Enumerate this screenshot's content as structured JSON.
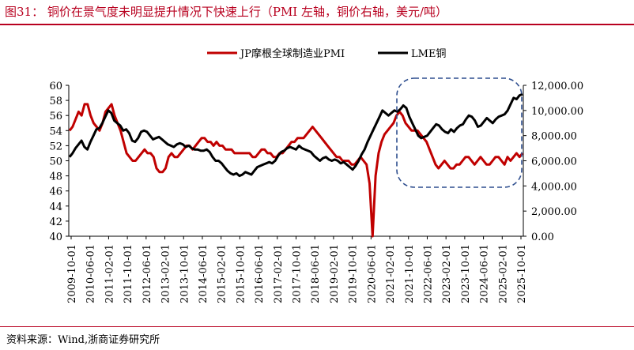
{
  "title": "图31：  铜价在景气度未明显提升情况下快速上行（PMI 左轴，铜价右轴，美元/吨）",
  "source": "资料来源：Wind,浙商证券研究所",
  "chart_data": {
    "type": "line",
    "x_tick_labels": [
      "2009-10-01",
      "2010-06-01",
      "2011-02-01",
      "2011-10-01",
      "2012-06-01",
      "2013-02-01",
      "2013-10-01",
      "2014-06-01",
      "2015-02-01",
      "2015-10-01",
      "2016-06-01",
      "2017-02-01",
      "2017-10-01",
      "2018-06-01",
      "2019-02-01",
      "2019-10-01",
      "2020-06-01",
      "2021-02-01",
      "2021-10-01",
      "2022-06-01",
      "2023-02-01",
      "2023-10-01",
      "2024-06-01",
      "2025-02-01",
      "2025-10-01"
    ],
    "y_left": {
      "range": [
        40,
        60
      ],
      "ticks": [
        "40",
        "42",
        "44",
        "46",
        "48",
        "50",
        "52",
        "54",
        "56",
        "58",
        "60"
      ]
    },
    "y_right": {
      "range": [
        0,
        12000
      ],
      "ticks": [
        "0.00",
        "2,000.00",
        "4,000.00",
        "6,000.00",
        "8,000.00",
        "10,000.00",
        "12,000.00"
      ]
    },
    "series": [
      {
        "name": "JP摩根全球制造业PMI",
        "axis": "left",
        "color": "#c00000",
        "values": [
          54.0,
          54.5,
          55.5,
          56.5,
          56.0,
          57.5,
          57.5,
          56.0,
          55.0,
          54.5,
          54.0,
          55.0,
          56.5,
          57.0,
          57.5,
          56.0,
          55.0,
          54.0,
          52.5,
          51.0,
          50.5,
          50.0,
          50.0,
          50.5,
          51.0,
          51.5,
          51.0,
          51.0,
          50.5,
          49.0,
          48.5,
          48.5,
          49.0,
          50.5,
          51.0,
          50.5,
          50.5,
          51.0,
          51.5,
          52.0,
          52.0,
          51.5,
          52.0,
          52.5,
          53.0,
          53.0,
          52.5,
          52.5,
          52.0,
          52.5,
          52.0,
          52.0,
          51.5,
          51.5,
          51.5,
          51.0,
          51.0,
          51.0,
          51.0,
          51.0,
          51.0,
          50.5,
          50.5,
          51.0,
          51.5,
          51.5,
          51.0,
          51.0,
          50.5,
          50.5,
          51.0,
          51.0,
          51.5,
          52.0,
          52.5,
          52.5,
          53.0,
          53.0,
          53.0,
          53.5,
          54.0,
          54.5,
          54.0,
          53.5,
          53.0,
          52.5,
          52.0,
          51.5,
          51.0,
          50.5,
          50.5,
          50.0,
          50.0,
          50.0,
          49.5,
          49.5,
          50.0,
          50.5,
          50.0,
          49.5,
          47.0,
          40.0,
          48.0,
          51.0,
          52.5,
          53.5,
          54.0,
          54.5,
          55.0,
          56.0,
          56.5,
          56.0,
          55.0,
          54.5,
          54.0,
          54.0,
          54.0,
          53.5,
          53.0,
          52.5,
          51.5,
          50.5,
          49.5,
          49.0,
          49.5,
          50.0,
          49.5,
          49.0,
          49.0,
          49.5,
          49.5,
          50.0,
          50.5,
          50.5,
          50.0,
          49.5,
          50.0,
          50.5,
          50.0,
          49.5,
          49.5,
          50.0,
          50.5,
          50.5,
          50.0,
          49.5,
          50.5,
          50.0,
          50.5,
          51.0,
          50.5,
          51.0
        ]
      },
      {
        "name": "LME铜",
        "axis": "right",
        "color": "#000000",
        "values": [
          6300,
          6600,
          7000,
          7300,
          7600,
          7100,
          6900,
          7500,
          8000,
          8500,
          8600,
          9000,
          9500,
          10000,
          9800,
          9200,
          9000,
          8800,
          8400,
          8500,
          8200,
          7600,
          7500,
          7800,
          8300,
          8400,
          8300,
          8000,
          7700,
          7800,
          7900,
          7700,
          7500,
          7300,
          7200,
          7100,
          7300,
          7400,
          7300,
          7100,
          7200,
          7000,
          6900,
          6900,
          6800,
          6800,
          6900,
          6700,
          6300,
          6000,
          6000,
          5800,
          5500,
          5200,
          5000,
          4900,
          5000,
          4800,
          4900,
          5100,
          5000,
          4900,
          5200,
          5500,
          5600,
          5700,
          5800,
          5900,
          5800,
          6000,
          6400,
          6700,
          6800,
          7000,
          7100,
          7000,
          6900,
          7200,
          7000,
          6900,
          6800,
          6700,
          6400,
          6200,
          6000,
          6200,
          6300,
          6100,
          6000,
          6100,
          6000,
          5800,
          5900,
          5700,
          5500,
          5300,
          5600,
          6000,
          6500,
          6900,
          7500,
          8000,
          8500,
          9000,
          9500,
          10000,
          9800,
          9600,
          9800,
          10000,
          9900,
          10100,
          10400,
          10200,
          9500,
          9000,
          8500,
          8000,
          7800,
          7900,
          8000,
          8300,
          8600,
          8900,
          8800,
          8500,
          8300,
          8200,
          8500,
          8300,
          8600,
          8800,
          8900,
          9300,
          9600,
          9500,
          9200,
          8700,
          8800,
          9100,
          9400,
          9200,
          9000,
          9300,
          9500,
          9600,
          9700,
          10000,
          10500,
          11000,
          10900,
          11200,
          11300
        ]
      }
    ],
    "annotation": "dashed rounded rectangle highlighting 2021-10 to 2025-10"
  }
}
